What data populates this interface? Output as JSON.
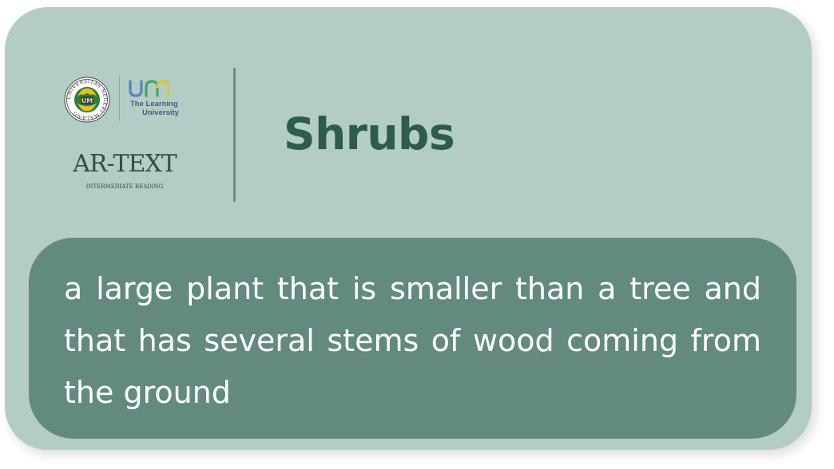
{
  "logo": {
    "seal_text": "UNIVERSITAS NEGERI MALANG",
    "seal_badge": "UM",
    "um_tagline_line1": "The Learning",
    "um_tagline_line2": "University",
    "brand": "AR-TEXT",
    "brand_subtitle": "INTERMEDIATE READING"
  },
  "card": {
    "word": "Shrubs",
    "definition": "a large plant that is smaller than a tree and that has several stems of wood coming from the ground"
  },
  "colors": {
    "card_background": "#b3ccc5",
    "definition_background": "#628a7f",
    "word_color": "#2d5b4d",
    "divider": "#6e8c83",
    "um_blue": "#3d5f86",
    "um_yellow": "#d7c63b"
  }
}
